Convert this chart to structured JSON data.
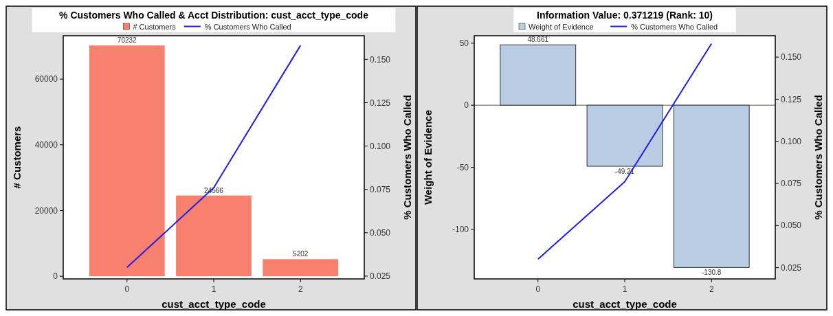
{
  "chart_data": [
    {
      "type": "bar",
      "title": "% Customers Who Called & Acct Distribution: cust_acct_type_code",
      "xlabel": "cust_acct_type_code",
      "ylabel": "# Customers",
      "y2label": "% Customers Who Called",
      "categories": [
        "0",
        "1",
        "2"
      ],
      "series": [
        {
          "name": "# Customers",
          "color": "#f8806f",
          "values": [
            70232,
            24566,
            5202
          ],
          "value_labels": [
            "70232",
            "24566",
            "5202"
          ]
        },
        {
          "name": "% Customers Who Called",
          "type": "line",
          "axis": "y2",
          "color": "#2020e0",
          "values": [
            0.03,
            0.076,
            0.158
          ]
        }
      ],
      "ylim": [
        -800,
        73200
      ],
      "yticks": [
        0,
        20000,
        40000,
        60000
      ],
      "y2lim": [
        0.0234,
        0.1636
      ],
      "y2ticks": [
        0.025,
        {
          "value": 0.05,
          "label": "0.050"
        },
        0.075,
        {
          "value": 0.1,
          "label": "0.100"
        },
        0.125,
        {
          "value": 0.15,
          "label": "0.150"
        }
      ],
      "legend": "top",
      "grid": false
    },
    {
      "type": "bar",
      "title": "Information Value: 0.371219 (Rank: 10)",
      "xlabel": "cust_acct_type_code",
      "ylabel": "Weight of Evidence",
      "y2label": "% Customers Who Called",
      "categories": [
        "0",
        "1",
        "2"
      ],
      "series": [
        {
          "name": "Weight of Evidence",
          "color": "#b8cce4",
          "values": [
            48.661,
            -49.21,
            -130.8
          ],
          "value_labels": [
            "48.661",
            "-49.21",
            "-130.8"
          ]
        },
        {
          "name": "% Customers Who Called",
          "type": "line",
          "axis": "y2",
          "color": "#2020e0",
          "values": [
            0.03,
            0.076,
            0.158
          ]
        }
      ],
      "ylim": [
        -140,
        56
      ],
      "yticks": [
        -100,
        -50,
        0,
        50
      ],
      "y2lim": [
        0.0183,
        0.1627
      ],
      "y2ticks": [
        0.025,
        {
          "value": 0.05,
          "label": "0.050"
        },
        0.075,
        {
          "value": 0.1,
          "label": "0.100"
        },
        0.125,
        {
          "value": 0.15,
          "label": "0.150"
        }
      ],
      "ref_lines": [
        {
          "axis": "y",
          "value": 0,
          "color": "#555555"
        }
      ],
      "legend": "top",
      "grid": false
    }
  ]
}
